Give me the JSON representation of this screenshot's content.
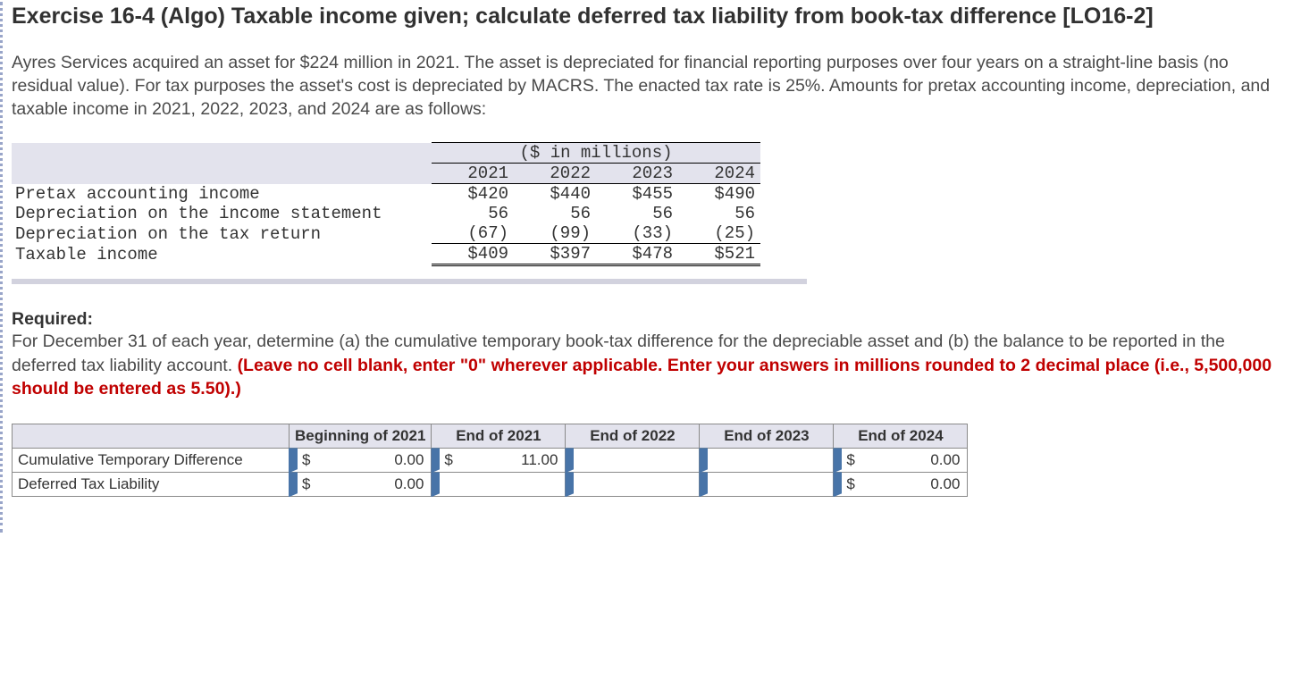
{
  "title": "Exercise 16-4 (Algo) Taxable income given; calculate deferred tax liability from book-tax difference [LO16-2]",
  "paragraph": "Ayres Services acquired an asset for $224 million in 2021. The asset is depreciated for financial reporting purposes over four years on a straight-line basis (no residual value). For tax purposes the asset's cost is depreciated by MACRS. The enacted tax rate is 25%. Amounts for pretax accounting income, depreciation, and taxable income in 2021, 2022, 2023, and 2024 are as follows:",
  "dataTable": {
    "unitsLabel": "($ in millions)",
    "years": [
      "2021",
      "2022",
      "2023",
      "2024"
    ],
    "rows": [
      {
        "label": "Pretax accounting income",
        "values": [
          "$420",
          "$440",
          "$455",
          "$490"
        ]
      },
      {
        "label": "Depreciation on the income statement",
        "values": [
          "56",
          "56",
          "56",
          "56"
        ]
      },
      {
        "label": "Depreciation on the tax return",
        "values": [
          "(67)",
          "(99)",
          "(33)",
          "(25)"
        ]
      }
    ],
    "totalRow": {
      "label": "Taxable income",
      "values": [
        "$409",
        "$397",
        "$478",
        "$521"
      ]
    }
  },
  "required": {
    "heading": "Required:",
    "textBlack": "For December 31 of each year, determine (a) the cumulative temporary book-tax difference for the depreciable asset and (b) the balance to be reported in the deferred tax liability account. ",
    "textRed": "(Leave no cell blank, enter \"0\" wherever applicable. Enter your answers in millions rounded to 2 decimal place (i.e., 5,500,000 should be entered as 5.50).)"
  },
  "answerTable": {
    "headers": [
      "Beginning of 2021",
      "End of 2021",
      "End of 2022",
      "End of 2023",
      "End of 2024"
    ],
    "rows": [
      {
        "label": "Cumulative Temporary Difference",
        "cells": [
          {
            "currency": "$",
            "value": "0.00"
          },
          {
            "currency": "$",
            "value": "11.00"
          },
          {
            "currency": "",
            "value": ""
          },
          {
            "currency": "",
            "value": ""
          },
          {
            "currency": "$",
            "value": "0.00"
          }
        ]
      },
      {
        "label": "Deferred Tax Liability",
        "cells": [
          {
            "currency": "$",
            "value": "0.00"
          },
          {
            "currency": "",
            "value": ""
          },
          {
            "currency": "",
            "value": ""
          },
          {
            "currency": "",
            "value": ""
          },
          {
            "currency": "$",
            "value": "0.00"
          }
        ]
      }
    ]
  }
}
